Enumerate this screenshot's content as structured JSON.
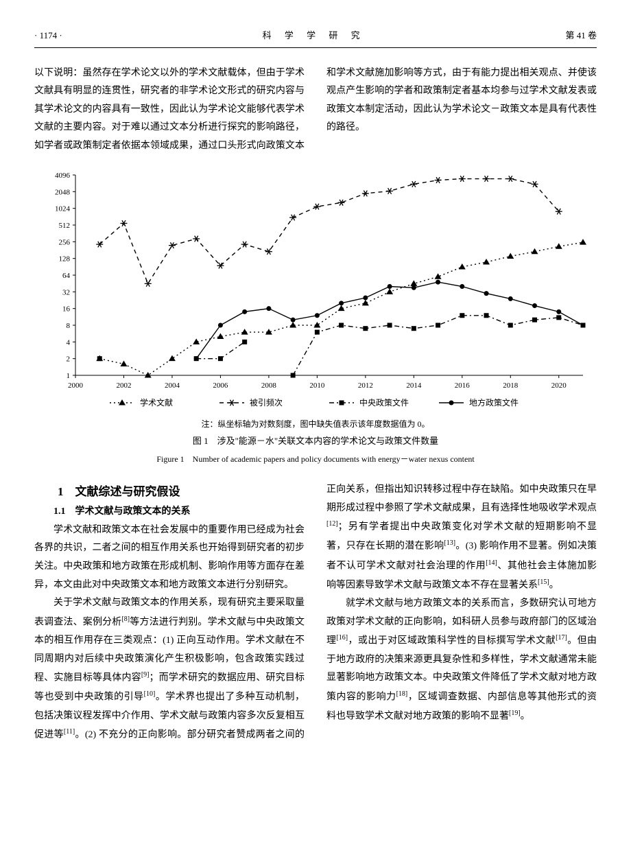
{
  "header": {
    "page_number": "· 1174 ·",
    "journal": "科 学 学 研 究",
    "volume": "第 41 卷"
  },
  "top_paragraph": "以下说明：虽然存在学术论文以外的学术文献载体，但由于学术文献具有明显的连贯性，研究者的非学术论文形式的研究内容与其学术论文的内容具有一致性，因此认为学术论文能够代表学术文献的主要内容。对于难以通过文本分析进行探究的影响路径，如学者或政策制定者依据本领域成果，通过口头形式向政策文本和学术文献施加影响等方式，由于有能力提出相关观点、并使该观点产生影响的学者和政策制定者基本均参与过学术文献发表或政策文本制定活动，因此认为学术论文－政策文本是具有代表性的路径。",
  "chart": {
    "type": "line",
    "title_cn": "图 1　涉及\"能源－水\"关联文本内容的学术论文与政策文件数量",
    "title_en": "Figure 1　Number of academic papers and policy documents with energy－water nexus content",
    "note": "注：纵坐标轴为对数刻度，图中缺失值表示该年度数据值为 0。",
    "x_values": [
      2000,
      2001,
      2002,
      2003,
      2004,
      2005,
      2006,
      2007,
      2008,
      2009,
      2010,
      2011,
      2012,
      2013,
      2014,
      2015,
      2016,
      2017,
      2018,
      2019,
      2020,
      2021
    ],
    "x_ticks": [
      2000,
      2002,
      2004,
      2006,
      2008,
      2010,
      2012,
      2014,
      2016,
      2018,
      2020
    ],
    "y_ticks": [
      1,
      2,
      4,
      8,
      16,
      32,
      64,
      128,
      256,
      512,
      1024,
      2048,
      4096
    ],
    "y_scale": "log2",
    "xlim": [
      2000,
      2021
    ],
    "ylim": [
      1,
      4096
    ],
    "background_color": "#ffffff",
    "axis_color": "#000000",
    "grid": false,
    "axis_fontsize": 11,
    "legend_fontsize": 12,
    "line_width": 1.4,
    "marker_size": 5,
    "series": [
      {
        "name": "学术文献",
        "marker": "triangle",
        "dash": "dot",
        "color": "#000000",
        "data": [
          null,
          2,
          1.6,
          1,
          2,
          4,
          5,
          6,
          6,
          8,
          8,
          16,
          20,
          32,
          45,
          60,
          90,
          110,
          140,
          170,
          210,
          250
        ]
      },
      {
        "name": "被引频次",
        "marker": "star",
        "dash": "dash",
        "color": "#000000",
        "data": [
          null,
          230,
          550,
          45,
          220,
          290,
          95,
          230,
          170,
          700,
          1100,
          1300,
          1900,
          2100,
          2800,
          3300,
          3500,
          3500,
          3500,
          2800,
          900,
          null
        ]
      },
      {
        "name": "中央政策文件",
        "marker": "square",
        "dash": "dashdot",
        "color": "#000000",
        "data": [
          null,
          2,
          null,
          null,
          null,
          2,
          2,
          4,
          null,
          1,
          6,
          8,
          7,
          8,
          7,
          8,
          12,
          12,
          8,
          10,
          11,
          8
        ]
      },
      {
        "name": "地方政策文件",
        "marker": "circle",
        "dash": "solid",
        "color": "#000000",
        "data": [
          null,
          null,
          null,
          null,
          null,
          2,
          8,
          14,
          16,
          10,
          12,
          20,
          25,
          40,
          38,
          48,
          40,
          30,
          24,
          18,
          14,
          8
        ]
      }
    ],
    "legend_position": "bottom"
  },
  "section1": {
    "number": "1",
    "title": "文献综述与研究假设",
    "sub1_1_number": "1.1",
    "sub1_1_title": "学术文献与政策文本的关系"
  },
  "body_paragraphs": {
    "p1": "学术文献和政策文本在社会发展中的重要作用已经成为社会各界的共识，二者之间的相互作用关系也开始得到研究者的初步关注。中央政策和地方政策在形成机制、影响作用等方面存在差异，本文由此对中央政策文本和地方政策文本进行分别研究。",
    "p2a": "关于学术文献与政策文本的作用关系，现有研究主要采取量表调查法、案例分析",
    "p2b": "等方法进行判别。学术文献与中央政策文本的相互作用存在三类观点：(1) 正向互动作用。学术文献在不同周期内对后续中央政策演化产生积极影响，包含政策实践过程、实施目标等具体内容",
    "p2c": "；而学术研究的数据应用、研究目标等也受到中央政策的引导",
    "p2d": "。学术界也提出了多种互动机制，包括决策议程发挥中介作用、学术文献与政策内容多次反复相互促进等",
    "p2e": "。(2) 不充分的正向影响。部分研究者赞成两者之间的正向关系，但指出知识转移过程中存在缺陷。如中央政策只在早期形成过程中参照了学术文献成果，且有选择性地吸收学术观点",
    "p2f": "；另有学者提出中央政策变化对学术文献的短期影响不显著，只存在长期的潜在影响",
    "p2g": "。(3) 影响作用不显著。例如决策者不认可学术文献对社会治理的作用",
    "p2h": "、其他社会主体施加影响等因素导致学术文献与政策文本不存在显著关系",
    "p2i": "。",
    "p3a": "就学术文献与地方政策文本的关系而言，多数研究认可地方政策对学术文献的正向影响，如科研人员参与政府部门的区域治理",
    "p3b": "，或出于对区域政策科学性的目标撰写学术文献",
    "p3c": "。但由于地方政府的决策来源更具复杂性和多样性，学术文献通常未能显著影响地方政策文本。中央政策文件降低了学术文献对地方政策内容的影响力",
    "p3d": "，区域调查数据、内部信息等其他形式的资料也导致学术文献对地方政策的影响不显著",
    "p3e": "。"
  },
  "refs": {
    "r8": "[8]",
    "r9": "[9]",
    "r10": "[10]",
    "r11": "[11]",
    "r12": "[12]",
    "r13": "[13]",
    "r14": "[14]",
    "r15": "[15]",
    "r16": "[16]",
    "r17": "[17]",
    "r18": "[18]",
    "r19": "[19]"
  }
}
